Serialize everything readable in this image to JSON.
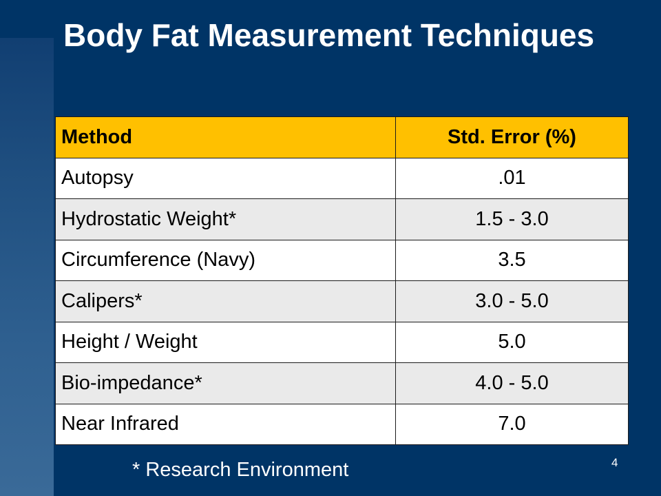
{
  "slide": {
    "title": "Body Fat Measurement Techniques",
    "page_number": "4",
    "footnote": "* Research Environment"
  },
  "table": {
    "headers": {
      "method": "Method",
      "std_error": "Std. Error (%)"
    },
    "rows": [
      {
        "method": "Autopsy",
        "std_error": ".01"
      },
      {
        "method": "Hydrostatic Weight*",
        "std_error": "1.5 - 3.0"
      },
      {
        "method": "Circumference (Navy)",
        "std_error": "3.5"
      },
      {
        "method": "Calipers*",
        "std_error": "3.0 - 5.0"
      },
      {
        "method": "Height / Weight",
        "std_error": "5.0"
      },
      {
        "method": "Bio-impedance*",
        "std_error": "4.0 - 5.0"
      },
      {
        "method": "Near Infrared",
        "std_error": "7.0"
      }
    ]
  },
  "colors": {
    "background": "#003466",
    "header_fill": "#ffc000",
    "row_white": "#ffffff",
    "row_grey": "#eaeaea",
    "text_light": "#ffffff"
  }
}
